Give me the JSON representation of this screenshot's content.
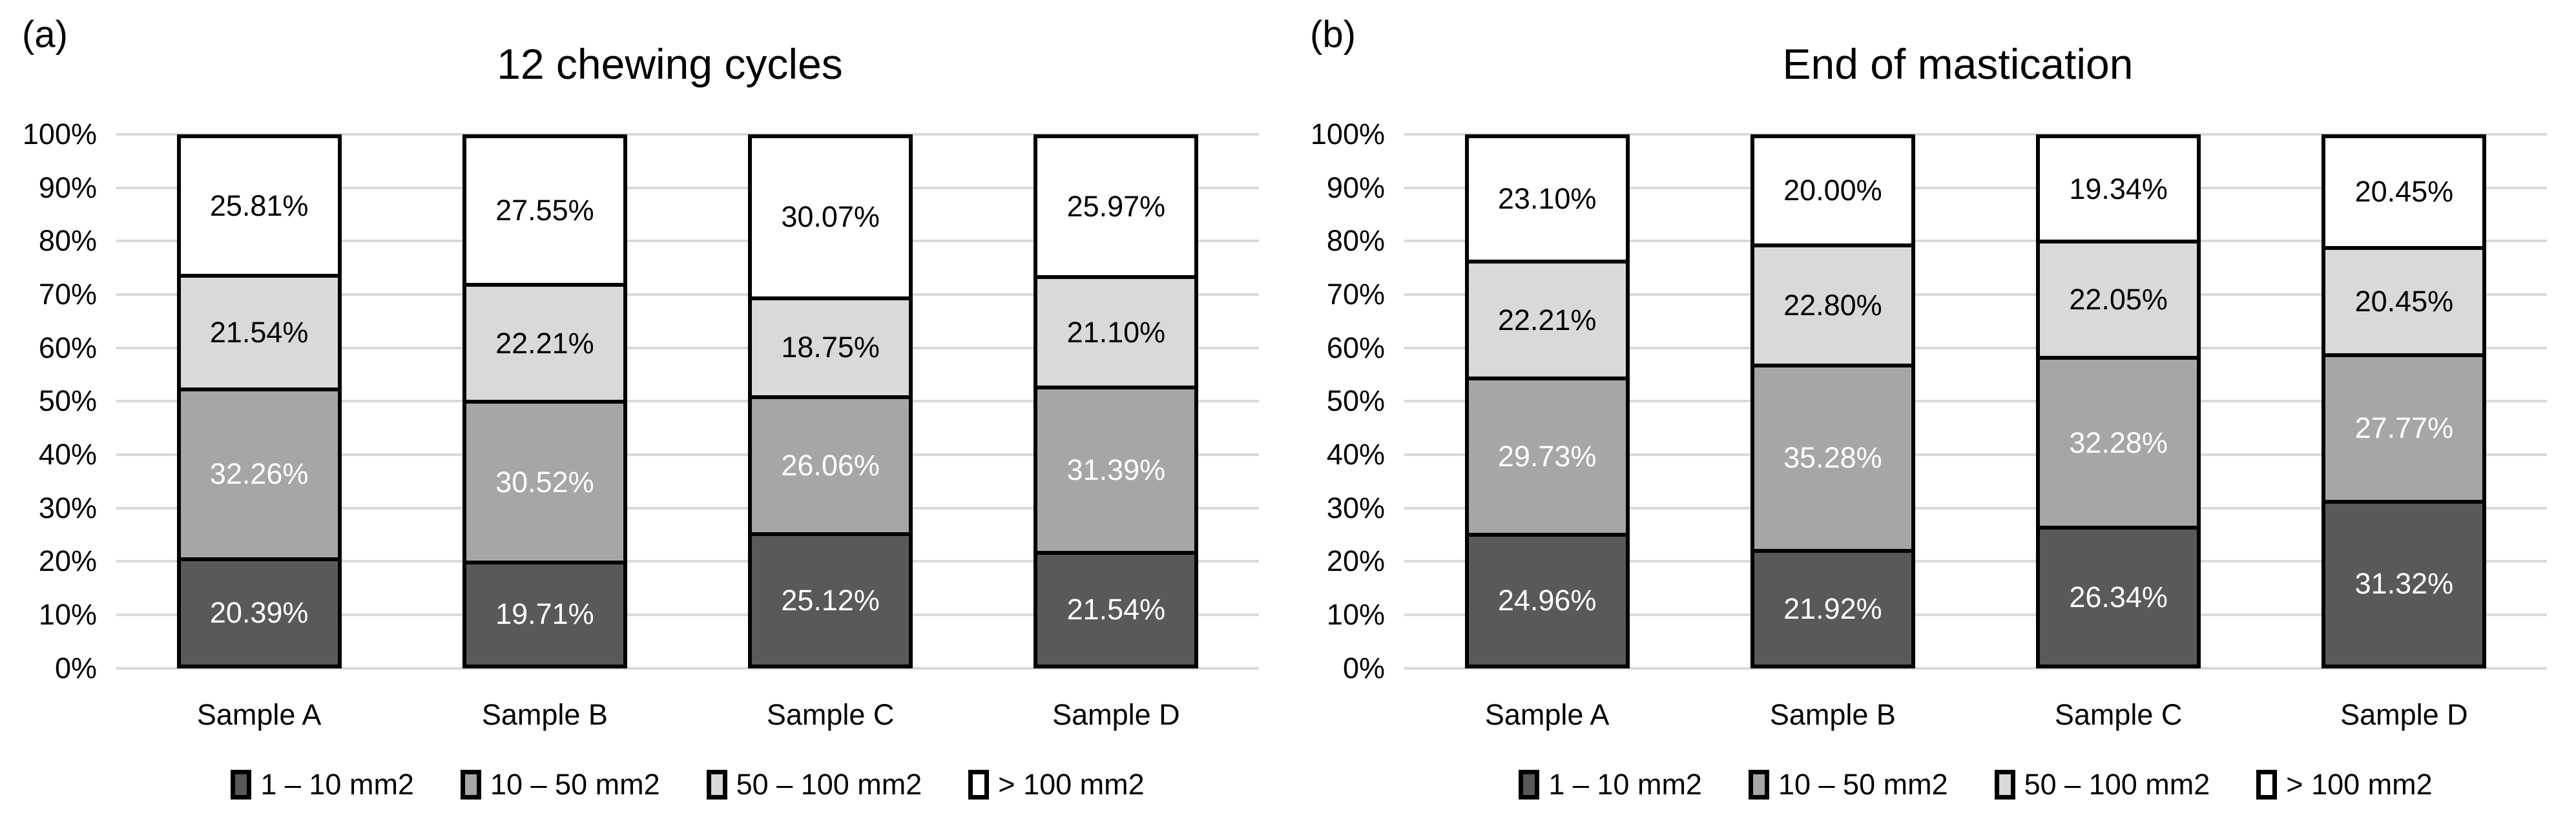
{
  "figure": {
    "background": "#ffffff",
    "border_color": "#000000",
    "gridline_color": "#d9d9d9"
  },
  "chart_data": [
    {
      "type": "bar",
      "stacked": true,
      "orientation": "vertical",
      "panel_label": "(a)",
      "title": "12 chewing cycles",
      "categories": [
        "Sample A",
        "Sample B",
        "Sample C",
        "Sample D"
      ],
      "series": [
        {
          "name": "1 – 10 mm2",
          "color": "#595959",
          "text_color": "#ffffff",
          "values": [
            20.39,
            19.71,
            25.12,
            21.54
          ]
        },
        {
          "name": "10 – 50 mm2",
          "color": "#a6a6a6",
          "text_color": "#ffffff",
          "values": [
            32.26,
            30.52,
            26.06,
            31.39
          ]
        },
        {
          "name": "50 – 100 mm2",
          "color": "#d9d9d9",
          "text_color": "#000000",
          "values": [
            21.54,
            22.21,
            18.75,
            21.1
          ]
        },
        {
          "name": "> 100 mm2",
          "color": "#ffffff",
          "text_color": "#000000",
          "values": [
            25.81,
            27.55,
            30.07,
            25.97
          ]
        }
      ],
      "value_labels": [
        [
          "20.39%",
          "19.71%",
          "25.12%",
          "21.54%"
        ],
        [
          "32.26%",
          "30.52%",
          "26.06%",
          "31.39%"
        ],
        [
          "21.54%",
          "22.21%",
          "18.75%",
          "21.10%"
        ],
        [
          "25.81%",
          "27.55%",
          "30.07%",
          "25.97%"
        ]
      ],
      "y_ticks": [
        "100%",
        "90%",
        "80%",
        "70%",
        "60%",
        "50%",
        "40%",
        "30%",
        "20%",
        "10%",
        "0%"
      ],
      "ylim": [
        0,
        100
      ],
      "grid": true,
      "legend_position": "bottom"
    },
    {
      "type": "bar",
      "stacked": true,
      "orientation": "vertical",
      "panel_label": "(b)",
      "title": "End of mastication",
      "categories": [
        "Sample A",
        "Sample B",
        "Sample C",
        "Sample D"
      ],
      "series": [
        {
          "name": "1 – 10 mm2",
          "color": "#595959",
          "text_color": "#ffffff",
          "values": [
            24.96,
            21.92,
            26.34,
            31.32
          ]
        },
        {
          "name": "10 – 50 mm2",
          "color": "#a6a6a6",
          "text_color": "#ffffff",
          "values": [
            29.73,
            35.28,
            32.28,
            27.77
          ]
        },
        {
          "name": "50 – 100 mm2",
          "color": "#d9d9d9",
          "text_color": "#000000",
          "values": [
            22.21,
            22.8,
            22.05,
            20.45
          ]
        },
        {
          "name": "> 100 mm2",
          "color": "#ffffff",
          "text_color": "#000000",
          "values": [
            23.1,
            20.0,
            19.34,
            20.45
          ]
        }
      ],
      "value_labels": [
        [
          "24.96%",
          "21.92%",
          "26.34%",
          "31.32%"
        ],
        [
          "29.73%",
          "35.28%",
          "32.28%",
          "27.77%"
        ],
        [
          "22.21%",
          "22.80%",
          "22.05%",
          "20.45%"
        ],
        [
          "23.10%",
          "20.00%",
          "19.34%",
          "20.45%"
        ]
      ],
      "y_ticks": [
        "100%",
        "90%",
        "80%",
        "70%",
        "60%",
        "50%",
        "40%",
        "30%",
        "20%",
        "10%",
        "0%"
      ],
      "ylim": [
        0,
        100
      ],
      "grid": true,
      "legend_position": "bottom"
    }
  ]
}
